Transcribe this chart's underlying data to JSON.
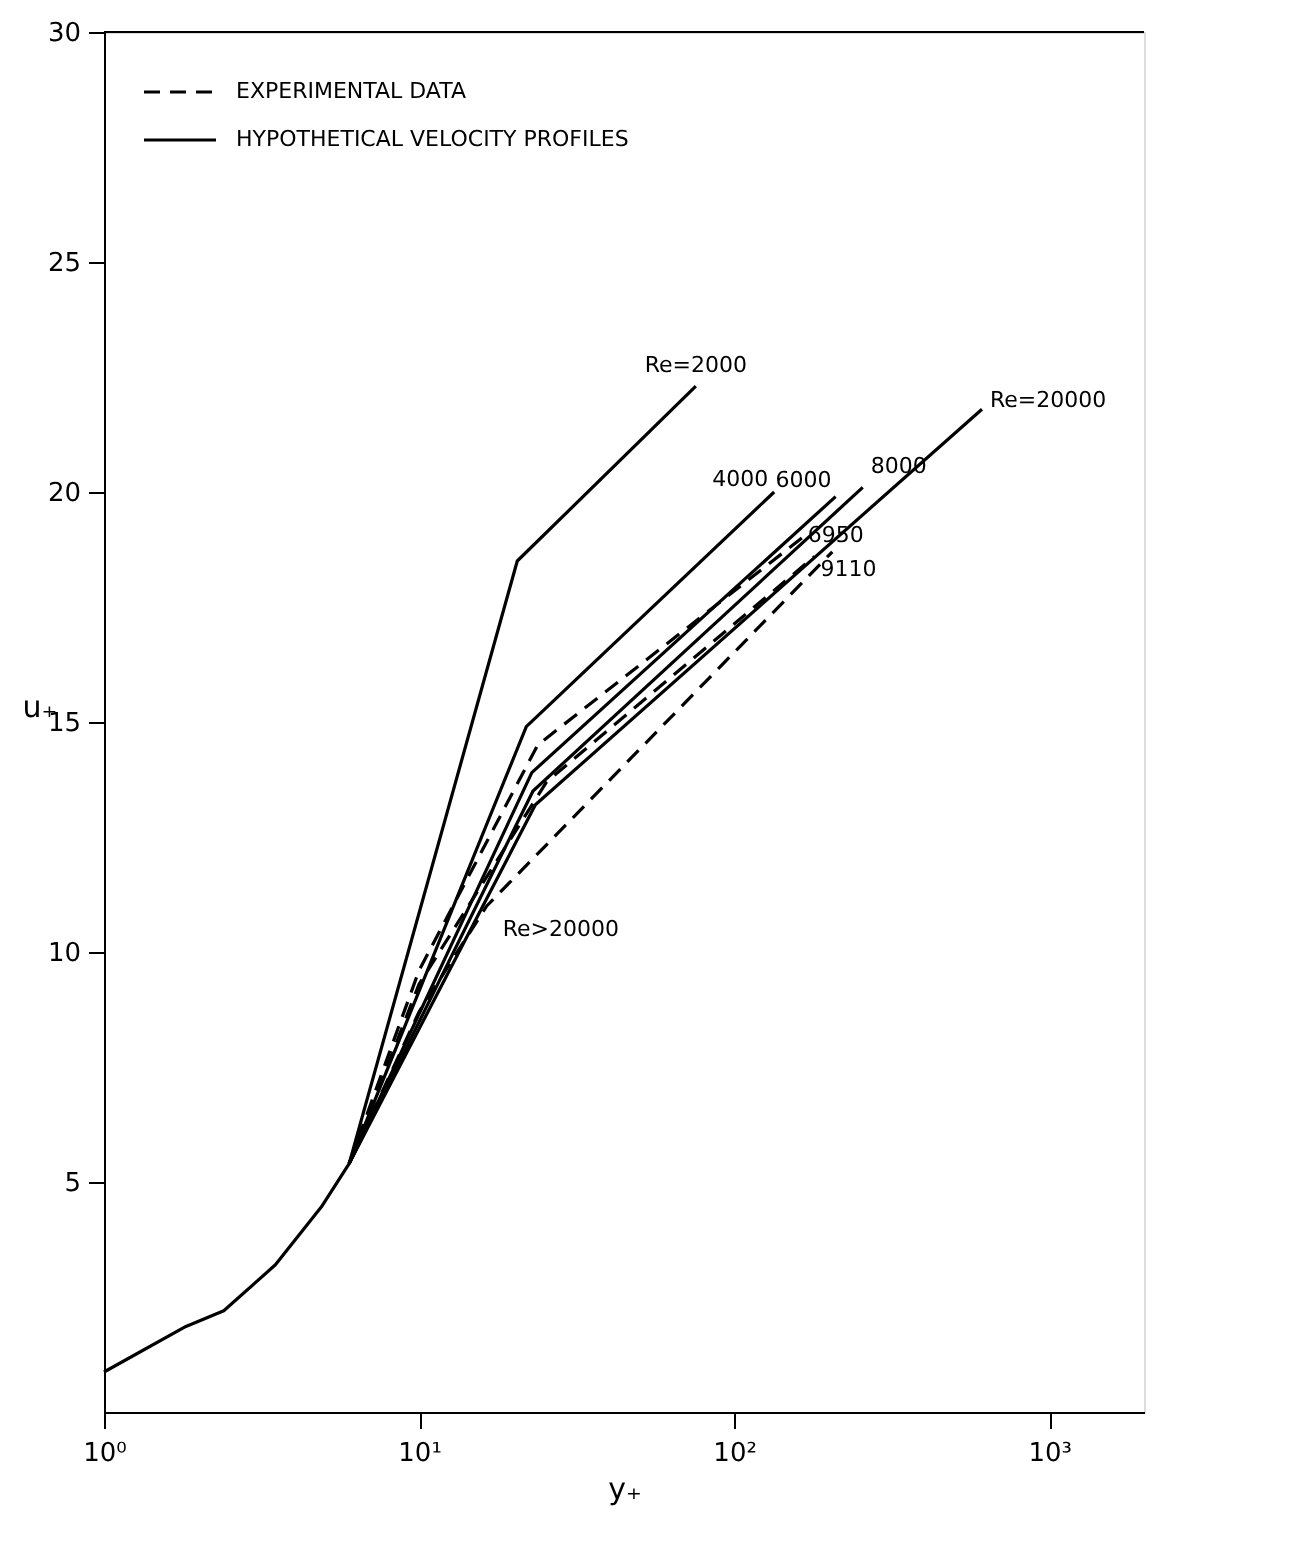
{
  "chart_data": {
    "type": "line",
    "xlabel": "y₊",
    "ylabel": "u₊",
    "xlim": [
      1,
      2000
    ],
    "ylim": [
      0,
      30
    ],
    "xticks": [
      {
        "value": 1,
        "label": "10⁰"
      },
      {
        "value": 10,
        "label": "10¹"
      },
      {
        "value": 100,
        "label": "10²"
      },
      {
        "value": 1000,
        "label": "10³"
      }
    ],
    "yticks": [
      5,
      10,
      15,
      20,
      25,
      30
    ],
    "log": "x",
    "grid": false,
    "marker": "none",
    "annotations": [
      "EXPERIMENTAL DATA",
      "HYPOTHETICAL VELOCITY PROFILES"
    ],
    "series": [
      {
        "name": "6950",
        "color": "#000000",
        "line_style": "dashed",
        "x": [
          6,
          10,
          23.8,
          164
        ],
        "values": [
          5.4,
          9.6,
          14.5,
          19.0
        ]
      },
      {
        "name": "9110",
        "color": "#000000",
        "line_style": "dashed",
        "x": [
          6,
          10,
          25.4,
          180
        ],
        "values": [
          5.4,
          9.3,
          13.7,
          18.6
        ]
      },
      {
        "name": "Re>20000",
        "color": "#000000",
        "line_style": "dashed",
        "x": [
          6,
          10,
          16.4,
          205
        ],
        "values": [
          5.4,
          8.7,
          11.0,
          18.7
        ]
      },
      {
        "name": "Re=2000",
        "color": "#000000",
        "line_style": "solid",
        "x": [
          1,
          1.82,
          2.4,
          3.5,
          4.9,
          6,
          20.5,
          75.6
        ],
        "values": [
          0.87,
          1.86,
          2.2,
          3.2,
          4.46,
          5.4,
          18.5,
          22.3
        ]
      },
      {
        "name": "4000",
        "color": "#000000",
        "line_style": "solid",
        "x": [
          6,
          21.9,
          134
        ],
        "values": [
          5.4,
          14.9,
          20.0
        ]
      },
      {
        "name": "6000",
        "color": "#000000",
        "line_style": "solid",
        "x": [
          6,
          22.8,
          210
        ],
        "values": [
          5.4,
          13.9,
          19.9
        ]
      },
      {
        "name": "8000",
        "color": "#000000",
        "line_style": "solid",
        "x": [
          6,
          23.0,
          256
        ],
        "values": [
          5.4,
          13.5,
          20.1
        ]
      },
      {
        "name": "Re=20000",
        "color": "#000000",
        "line_style": "solid",
        "x": [
          6,
          23.4,
          612
        ],
        "values": [
          5.4,
          13.2,
          21.8
        ]
      }
    ]
  }
}
